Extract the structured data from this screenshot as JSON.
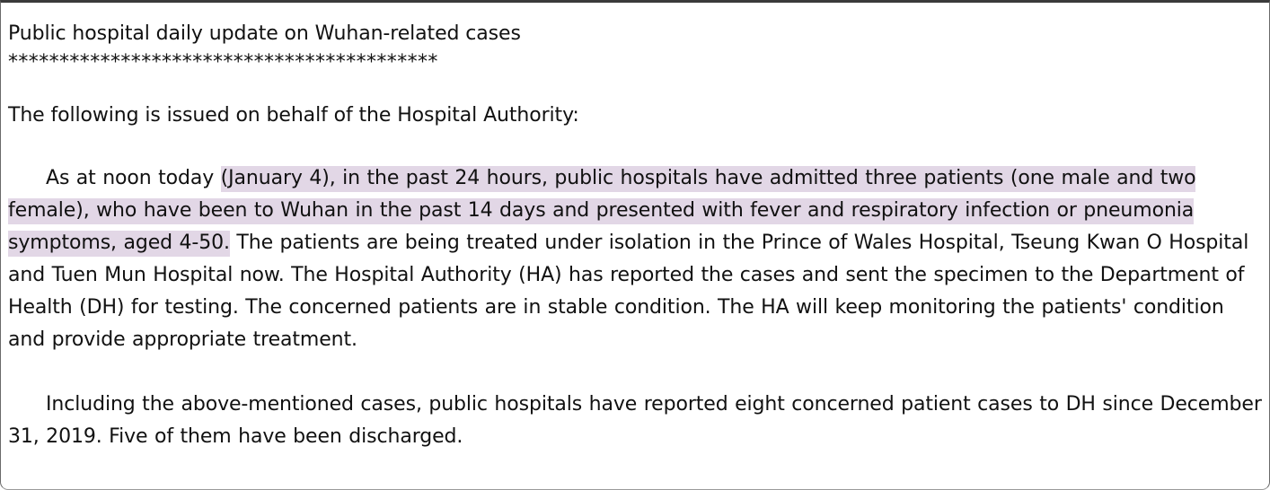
{
  "document": {
    "title": "Public hospital daily update on Wuhan-related cases",
    "separator": "******************************************",
    "issued_line": "The following is issued on behalf of the Hospital Authority:",
    "para1": {
      "before_highlight": "As at noon today ",
      "highlighted": "(January 4), in the past 24 hours, public hospitals have admitted three patients (one male and two female), who have been to Wuhan in the past 14 days and presented with fever and respiratory infection or pneumonia symptoms, aged 4-50.",
      "after_highlight": " The patients are being treated under isolation in the Prince of Wales Hospital, Tseung Kwan O Hospital and Tuen Mun Hospital now. The Hospital Authority (HA) has reported the cases and sent the specimen to the Department of Health (DH) for testing. The concerned patients are in stable condition. The HA will keep monitoring the patients' condition and provide appropriate treatment."
    },
    "para2": "Including the above-mentioned cases, public hospitals have reported eight concerned patient cases to DH since December 31, 2019. Five of them have been discharged."
  },
  "colors": {
    "highlight": "#e2d7e6",
    "text": "#111111",
    "background": "#ffffff",
    "frame_border": "#3a3a3a"
  }
}
